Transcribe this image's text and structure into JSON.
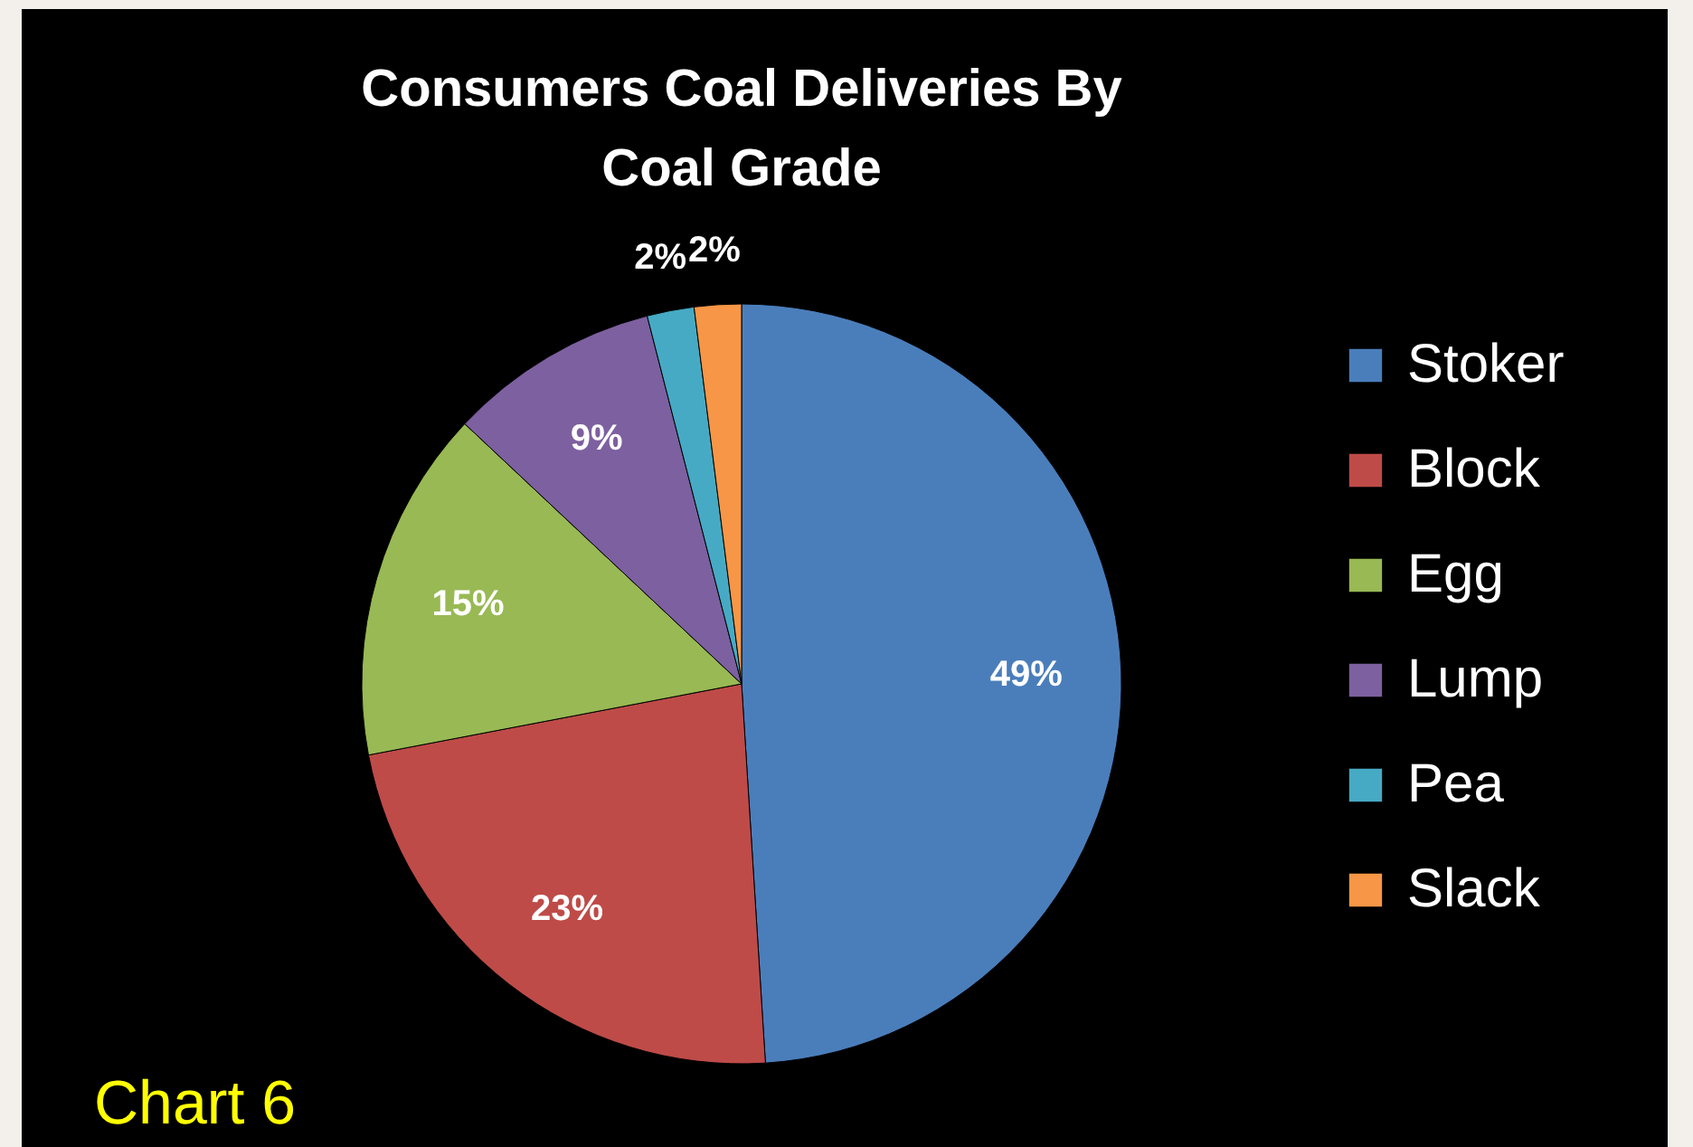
{
  "chart_data": {
    "type": "pie",
    "title": "Consumers Coal Deliveries By Coal Grade",
    "categories": [
      "Stoker",
      "Block",
      "Egg",
      "Lump",
      "Pea",
      "Slack"
    ],
    "values": [
      49,
      23,
      15,
      9,
      2,
      2
    ],
    "value_labels": [
      "49%",
      "23%",
      "15%",
      "9%",
      "2%",
      "2%"
    ],
    "colors": [
      "#4a7ebb",
      "#be4b48",
      "#98b954",
      "#7d60a0",
      "#46aac5",
      "#f79646"
    ],
    "legend": "right",
    "annotations": [
      "Chart 6"
    ]
  }
}
